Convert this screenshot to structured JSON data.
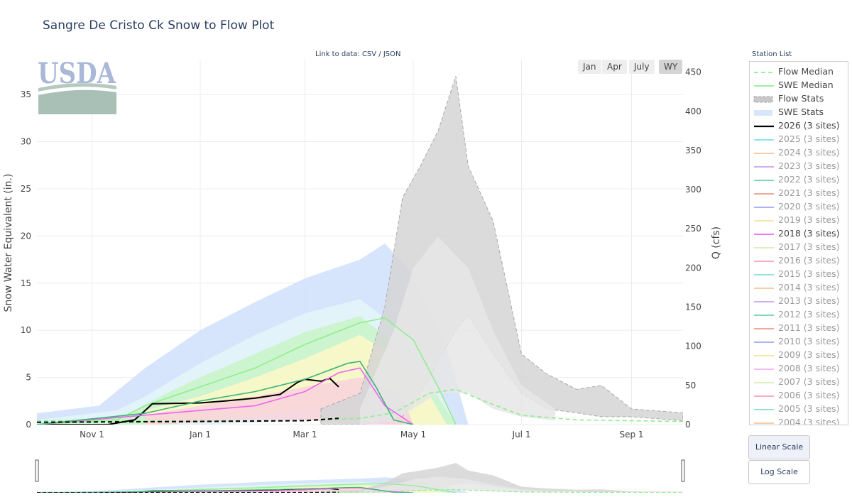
{
  "page": {
    "title": "Sangre De Cristo Ck Snow to Flow Plot",
    "data_link_prefix": "Link to data: ",
    "csv_label": "CSV",
    "separator": " / ",
    "json_label": "JSON",
    "logo_text": "USDA"
  },
  "range_buttons": [
    {
      "label": "Jan",
      "active": false
    },
    {
      "label": "Apr",
      "active": false
    },
    {
      "label": "July",
      "active": false
    },
    {
      "label": "WY",
      "active": true
    }
  ],
  "legend": {
    "title": "Station List",
    "items": [
      {
        "label": "Flow Median",
        "color": "#90ee90",
        "style": "dash",
        "dimmed": false
      },
      {
        "label": "SWE Median",
        "color": "#90ee90",
        "style": "line",
        "dimmed": false
      },
      {
        "label": "Flow Stats",
        "color": "#c8c8c8",
        "style": "band-dash",
        "dimmed": false
      },
      {
        "label": "SWE Stats",
        "color": "#d6e6fb",
        "style": "band",
        "dimmed": false
      },
      {
        "label": "2026 (3 sites)",
        "color": "#000000",
        "style": "line-bold",
        "dimmed": false
      },
      {
        "label": "2025 (3 sites)",
        "color": "#7fe3e8",
        "style": "line",
        "dimmed": true
      },
      {
        "label": "2024 (3 sites)",
        "color": "#f6c79a",
        "style": "line",
        "dimmed": true
      },
      {
        "label": "2023 (3 sites)",
        "color": "#c9a3e6",
        "style": "line",
        "dimmed": true
      },
      {
        "label": "2022 (3 sites)",
        "color": "#6fd3b0",
        "style": "line",
        "dimmed": true
      },
      {
        "label": "2021 (3 sites)",
        "color": "#ee9b8a",
        "style": "line",
        "dimmed": true
      },
      {
        "label": "2020 (3 sites)",
        "color": "#9fa8f0",
        "style": "line",
        "dimmed": true
      },
      {
        "label": "2019 (3 sites)",
        "color": "#f7e3a0",
        "style": "line",
        "dimmed": true
      },
      {
        "label": "2018 (3 sites)",
        "color": "#ee66ee",
        "style": "line",
        "dimmed": false
      },
      {
        "label": "2017 (3 sites)",
        "color": "#d4efb4",
        "style": "line",
        "dimmed": true
      },
      {
        "label": "2016 (3 sites)",
        "color": "#f4a0b8",
        "style": "line",
        "dimmed": true
      },
      {
        "label": "2015 (3 sites)",
        "color": "#86e0d6",
        "style": "line",
        "dimmed": true
      },
      {
        "label": "2014 (3 sites)",
        "color": "#f6c79a",
        "style": "line",
        "dimmed": true
      },
      {
        "label": "2013 (3 sites)",
        "color": "#c9a3e6",
        "style": "line",
        "dimmed": true
      },
      {
        "label": "2012 (3 sites)",
        "color": "#6fd3b0",
        "style": "line",
        "dimmed": true
      },
      {
        "label": "2011 (3 sites)",
        "color": "#ee9b8a",
        "style": "line",
        "dimmed": true
      },
      {
        "label": "2010 (3 sites)",
        "color": "#9fa8f0",
        "style": "line",
        "dimmed": true
      },
      {
        "label": "2009 (3 sites)",
        "color": "#f7e3a0",
        "style": "line",
        "dimmed": true
      },
      {
        "label": "2008 (3 sites)",
        "color": "#f3b6f3",
        "style": "line",
        "dimmed": true
      },
      {
        "label": "2007 (3 sites)",
        "color": "#d4efb4",
        "style": "line",
        "dimmed": true
      },
      {
        "label": "2006 (3 sites)",
        "color": "#f4a0b8",
        "style": "line",
        "dimmed": true
      },
      {
        "label": "2005 (3 sites)",
        "color": "#86e0d6",
        "style": "line",
        "dimmed": true
      },
      {
        "label": "2004 (3 sites)",
        "color": "#f6c79a",
        "style": "line",
        "dimmed": true
      }
    ]
  },
  "scale_buttons": [
    {
      "label": "Linear Scale",
      "active": true
    },
    {
      "label": "Log Scale",
      "active": false
    }
  ],
  "chart_data": {
    "type": "area",
    "title": "Sangre De Cristo Ck Snow to Flow Plot",
    "xlabel": "",
    "ylabel": "Snow Water Equivalent (in.)",
    "y2label": "Q (cfs)",
    "x_domain": [
      "2025-10-01",
      "2026-09-30"
    ],
    "x_ticks": [
      "Nov 1",
      "Jan 1",
      "Mar 1",
      "May 1",
      "Jul 1",
      "Sep 1"
    ],
    "x_tick_dates": [
      "2025-11-01",
      "2026-01-01",
      "2026-03-01",
      "2026-05-01",
      "2026-07-01",
      "2026-09-01"
    ],
    "ylim": [
      0,
      38.7
    ],
    "y_ticks": [
      0,
      5,
      10,
      15,
      20,
      25,
      30,
      35
    ],
    "y2lim": [
      0,
      466
    ],
    "y2_ticks": [
      0,
      50,
      100,
      150,
      200,
      250,
      300,
      350,
      400,
      450
    ],
    "grid": true,
    "legend_placement": "right",
    "swe_stats_bands": [
      {
        "name": "SWE max-min",
        "color": "#cfe1fa",
        "x": [
          "2025-10-01",
          "2025-11-05",
          "2025-12-01",
          "2026-01-01",
          "2026-02-01",
          "2026-03-01",
          "2026-04-01",
          "2026-04-15",
          "2026-05-01",
          "2026-05-20",
          "2026-06-01"
        ],
        "upper": [
          1.2,
          2,
          6,
          10,
          13,
          15.5,
          17.5,
          19.2,
          16,
          8,
          0
        ],
        "lower": [
          0,
          0,
          0,
          0,
          0.2,
          0.5,
          0.5,
          0,
          0,
          0,
          0
        ]
      },
      {
        "name": "SWE 90-10",
        "color": "#e4f6f8",
        "x": [
          "2025-10-01",
          "2025-11-15",
          "2025-12-01",
          "2026-01-01",
          "2026-02-01",
          "2026-03-01",
          "2026-04-01",
          "2026-05-01",
          "2026-05-25"
        ],
        "upper": [
          0.5,
          1.5,
          3,
          6.5,
          9.5,
          11.8,
          13.3,
          9,
          0
        ],
        "lower": [
          0,
          0,
          0,
          0,
          0.2,
          0.5,
          0.5,
          0,
          0
        ]
      },
      {
        "name": "SWE 70-30",
        "color": "#c8f3c8",
        "x": [
          "2025-10-01",
          "2025-11-20",
          "2025-12-15",
          "2026-01-01",
          "2026-02-01",
          "2026-03-01",
          "2026-04-01",
          "2026-05-01",
          "2026-05-25"
        ],
        "upper": [
          0.2,
          1,
          3.5,
          5,
          7.5,
          9.8,
          11.5,
          7,
          0
        ],
        "lower": [
          0,
          0,
          0,
          0.5,
          1,
          1.5,
          1.5,
          0,
          0
        ]
      },
      {
        "name": "SWE 50-30",
        "color": "#fdf8c8",
        "x": [
          "2025-12-01",
          "2026-01-01",
          "2026-02-01",
          "2026-03-01",
          "2026-04-01",
          "2026-05-01",
          "2026-05-20"
        ],
        "upper": [
          1.5,
          3,
          5,
          7,
          9.5,
          6,
          0
        ],
        "lower": [
          0,
          0.5,
          1,
          1.5,
          1.5,
          0,
          0
        ]
      },
      {
        "name": "SWE 30-10",
        "color": "#f9d2dc",
        "x": [
          "2025-12-01",
          "2026-01-01",
          "2026-02-01",
          "2026-03-01",
          "2026-04-01",
          "2026-04-25",
          "2026-05-01"
        ],
        "upper": [
          1,
          2,
          3,
          4,
          5,
          3,
          0
        ],
        "lower": [
          0,
          0.2,
          0.5,
          0.5,
          0,
          0,
          0
        ]
      }
    ],
    "flow_stats_bands": [
      {
        "name": "Flow max-min",
        "color": "#d5d5d5",
        "x": [
          "2026-03-10",
          "2026-04-01",
          "2026-04-15",
          "2026-04-25",
          "2026-05-05",
          "2026-05-15",
          "2026-05-25",
          "2026-06-01",
          "2026-06-15",
          "2026-07-01",
          "2026-07-15",
          "2026-08-01",
          "2026-08-15",
          "2026-09-01",
          "2026-09-30"
        ],
        "upper": [
          20,
          40,
          150,
          290,
          330,
          375,
          445,
          330,
          260,
          90,
          65,
          45,
          50,
          20,
          15
        ],
        "lower": [
          0,
          0,
          5,
          10,
          40,
          80,
          120,
          140,
          90,
          40,
          20,
          15,
          10,
          10,
          5
        ]
      },
      {
        "name": "Flow 90-10",
        "color": "#e6e6e6",
        "x": [
          "2026-04-01",
          "2026-04-20",
          "2026-05-01",
          "2026-05-15",
          "2026-06-01",
          "2026-06-15",
          "2026-07-01",
          "2026-07-20"
        ],
        "upper": [
          20,
          120,
          200,
          240,
          200,
          120,
          50,
          20
        ],
        "lower": [
          0,
          5,
          20,
          40,
          40,
          20,
          10,
          5
        ]
      }
    ],
    "series": [
      {
        "name": "SWE Median",
        "color": "#90ee90",
        "dash": false,
        "axis": "y",
        "x": [
          "2025-10-01",
          "2025-11-15",
          "2025-12-01",
          "2026-01-01",
          "2026-02-01",
          "2026-03-01",
          "2026-04-01",
          "2026-04-15",
          "2026-05-01",
          "2026-05-15",
          "2026-05-25"
        ],
        "values": [
          0,
          0.5,
          2,
          4,
          6,
          8.5,
          10.8,
          11.3,
          9,
          4,
          0
        ]
      },
      {
        "name": "Flow Median",
        "color": "#90ee90",
        "dash": true,
        "axis": "y2",
        "x": [
          "2025-10-01",
          "2026-03-01",
          "2026-04-01",
          "2026-04-20",
          "2026-05-10",
          "2026-05-25",
          "2026-06-10",
          "2026-07-01",
          "2026-08-01",
          "2026-09-30"
        ],
        "values": [
          5,
          5,
          8,
          15,
          40,
          45,
          30,
          12,
          6,
          4
        ]
      },
      {
        "name": "2026 (3 sites)",
        "color": "#000000",
        "dash": false,
        "axis": "y",
        "x": [
          "2025-10-01",
          "2025-11-10",
          "2025-11-25",
          "2025-12-01",
          "2025-12-05",
          "2026-01-01",
          "2026-01-15",
          "2026-02-01",
          "2026-02-15",
          "2026-02-25",
          "2026-03-01",
          "2026-03-10",
          "2026-03-15",
          "2026-03-20"
        ],
        "values": [
          0,
          0,
          0.5,
          1.5,
          2.2,
          2.3,
          2.5,
          2.8,
          3.2,
          4.5,
          4.8,
          4.6,
          4.9,
          4.0
        ]
      },
      {
        "name": "2018 (3 sites)",
        "color": "#ee66ee",
        "dash": false,
        "axis": "y",
        "x": [
          "2025-10-01",
          "2025-12-01",
          "2026-01-01",
          "2026-02-01",
          "2026-03-01",
          "2026-03-20",
          "2026-04-01",
          "2026-04-15",
          "2026-05-01"
        ],
        "values": [
          0,
          1,
          1.5,
          2,
          3.5,
          5.5,
          6,
          2,
          0
        ]
      },
      {
        "name": "2022 SWE",
        "color": "#3cb37a",
        "dash": false,
        "axis": "y",
        "x": [
          "2025-10-01",
          "2025-12-01",
          "2026-01-01",
          "2026-02-01",
          "2026-03-01",
          "2026-03-25",
          "2026-04-01",
          "2026-04-10",
          "2026-04-20",
          "2026-05-01"
        ],
        "values": [
          0,
          1.2,
          2.5,
          3.5,
          4.8,
          6.5,
          6.7,
          4,
          0.5,
          0
        ]
      },
      {
        "name": "2026 Flow",
        "color": "#000000",
        "dash": true,
        "axis": "y2",
        "x": [
          "2025-10-01",
          "2026-01-01",
          "2026-03-01",
          "2026-03-20"
        ],
        "values": [
          3,
          4,
          5,
          8
        ]
      }
    ]
  }
}
